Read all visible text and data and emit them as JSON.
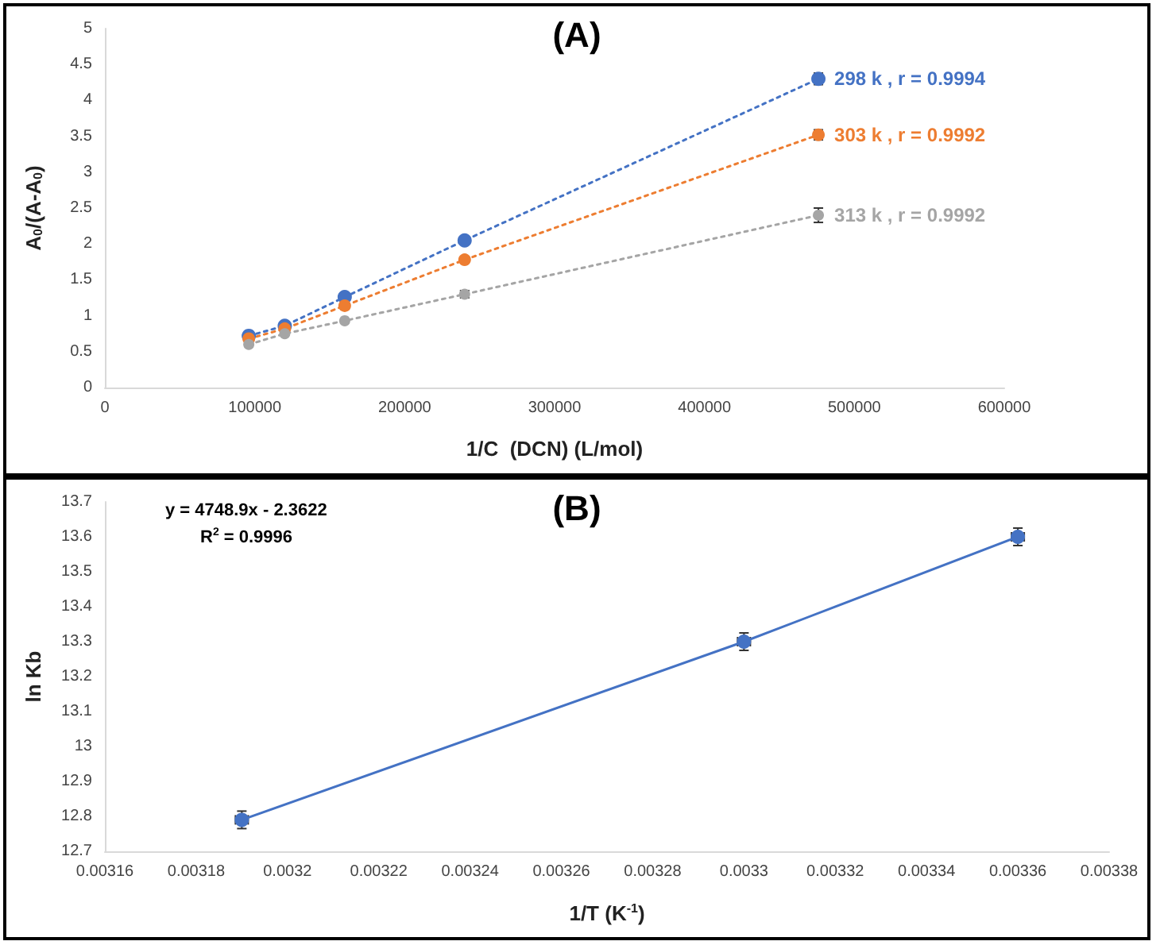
{
  "chart_data": [
    {
      "type": "line",
      "title": "(A)",
      "xlabel": "1/C  (DCN) (L/mol)",
      "ylabel": "A$_{0}$/(A-A$_{0}$)",
      "xlim": [
        0,
        600000
      ],
      "xticks": [
        0,
        100000,
        200000,
        300000,
        400000,
        500000,
        600000
      ],
      "ylim": [
        0,
        5
      ],
      "yticks": [
        0,
        0.5,
        1,
        1.5,
        2,
        2.5,
        3,
        3.5,
        4,
        4.5,
        5
      ],
      "x": [
        96000,
        120000,
        160000,
        240000,
        476000
      ],
      "grid": false,
      "legend": false,
      "marker": "circle",
      "line_style": "dotted",
      "series": [
        {
          "name": "298 k , r = 0.9994",
          "color": "#4472c4",
          "values": [
            0.72,
            0.86,
            1.26,
            2.05,
            4.3
          ],
          "errors": [
            null,
            null,
            null,
            null,
            0.08
          ]
        },
        {
          "name": "303 k , r = 0.9992",
          "color": "#ed7d31",
          "values": [
            0.68,
            0.82,
            1.14,
            1.78,
            3.52
          ],
          "errors": [
            null,
            null,
            null,
            null,
            0.07
          ]
        },
        {
          "name": "313 k , r = 0.9992",
          "color": "#a5a5a5",
          "values": [
            0.6,
            0.75,
            0.93,
            1.3,
            2.4
          ],
          "errors": [
            null,
            null,
            null,
            0.05,
            0.1
          ]
        }
      ]
    },
    {
      "type": "line",
      "title": "(B)",
      "xlabel": "1/T (K$^{-1}$)",
      "ylabel": "ln Kb",
      "annotations": [
        "y = 4748.9x - 2.3622",
        "R$^{2}$ = 0.9996"
      ],
      "xlim": [
        0.00316,
        0.00338
      ],
      "xticks": [
        0.00316,
        0.00318,
        0.0032,
        0.00322,
        0.00324,
        0.00326,
        0.00328,
        0.0033,
        0.00332,
        0.00334,
        0.00336,
        0.00338
      ],
      "ylim": [
        12.7,
        13.7
      ],
      "yticks": [
        12.7,
        12.8,
        12.9,
        13,
        13.1,
        13.2,
        13.3,
        13.4,
        13.5,
        13.6,
        13.7
      ],
      "x": [
        0.00319,
        0.0033,
        0.00336
      ],
      "grid": false,
      "legend": false,
      "marker": "circle",
      "line_style": "solid",
      "series": [
        {
          "color": "#4472c4",
          "values": [
            12.79,
            13.3,
            13.6
          ],
          "errors": [
            0.025,
            0.025,
            0.025
          ],
          "xerrors": [
            1e-06,
            1e-06,
            1e-06
          ]
        }
      ]
    }
  ]
}
